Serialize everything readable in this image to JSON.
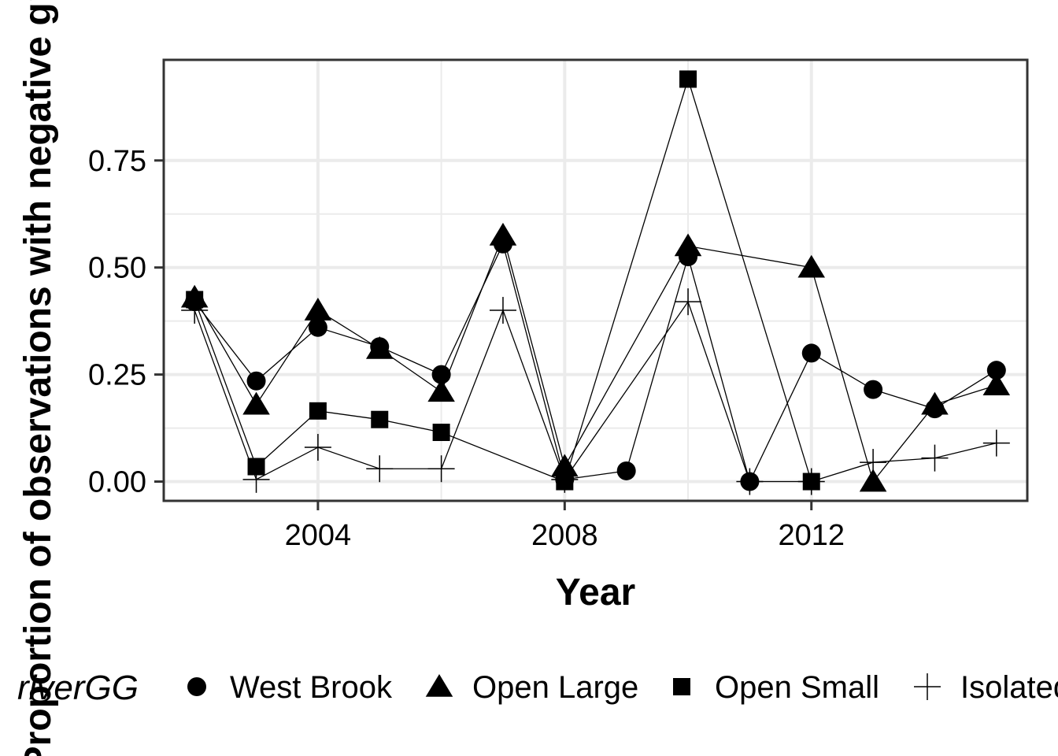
{
  "chart_data": {
    "type": "line",
    "title": "",
    "xlabel": "Year",
    "ylabel": "Proportion of observations with negative growth",
    "xlim": [
      2001.5,
      2015.5
    ],
    "ylim": [
      -0.045,
      0.985
    ],
    "xticks": [
      2004,
      2008,
      2012
    ],
    "yticks": [
      0.0,
      0.25,
      0.5,
      0.75
    ],
    "ytick_labels": [
      "0.00",
      "0.25",
      "0.50",
      "0.75"
    ],
    "grid": true,
    "legend": {
      "title": "riverGG",
      "placement": "bottom",
      "entries": [
        "West Brook",
        "Open Large",
        "Open Small",
        "Isolated"
      ]
    },
    "series": [
      {
        "name": "West Brook",
        "marker": "circle",
        "points": [
          [
            2002,
            0.42
          ],
          [
            2003,
            0.235
          ],
          [
            2004,
            0.36
          ],
          [
            2005,
            0.315
          ],
          [
            2006,
            0.25
          ],
          [
            2007,
            0.555
          ],
          [
            2008,
            0.005
          ],
          [
            2009,
            0.025
          ],
          [
            2010,
            0.525
          ],
          [
            2011,
            0.0
          ],
          [
            2012,
            0.3
          ],
          [
            2013,
            0.215
          ],
          [
            2014,
            0.17
          ],
          [
            2015,
            0.26
          ]
        ]
      },
      {
        "name": "Open Large",
        "marker": "triangle",
        "points": [
          [
            2002,
            0.43
          ],
          [
            2003,
            0.18
          ],
          [
            2004,
            0.4
          ],
          [
            2005,
            0.31
          ],
          [
            2006,
            0.21
          ],
          [
            2007,
            0.575
          ],
          [
            2008,
            0.035
          ],
          [
            2010,
            0.55
          ],
          [
            2012,
            0.5
          ],
          [
            2013,
            0.0
          ],
          [
            2014,
            0.18
          ],
          [
            2015,
            0.225
          ]
        ]
      },
      {
        "name": "Open Small",
        "marker": "square",
        "points": [
          [
            2002,
            0.425
          ],
          [
            2003,
            0.035
          ],
          [
            2004,
            0.165
          ],
          [
            2005,
            0.145
          ],
          [
            2006,
            0.115
          ],
          [
            2008,
            0.0
          ],
          [
            2010,
            0.94
          ],
          [
            2012,
            0.0
          ]
        ]
      },
      {
        "name": "Isolated",
        "marker": "plus",
        "points": [
          [
            2002,
            0.4
          ],
          [
            2003,
            0.005
          ],
          [
            2004,
            0.08
          ],
          [
            2005,
            0.03
          ],
          [
            2006,
            0.03
          ],
          [
            2007,
            0.4
          ],
          [
            2008,
            0.005
          ],
          [
            2010,
            0.42
          ],
          [
            2011,
            0.0
          ],
          [
            2012,
            0.0
          ],
          [
            2013,
            0.045
          ],
          [
            2014,
            0.055
          ],
          [
            2015,
            0.09
          ]
        ]
      }
    ]
  }
}
